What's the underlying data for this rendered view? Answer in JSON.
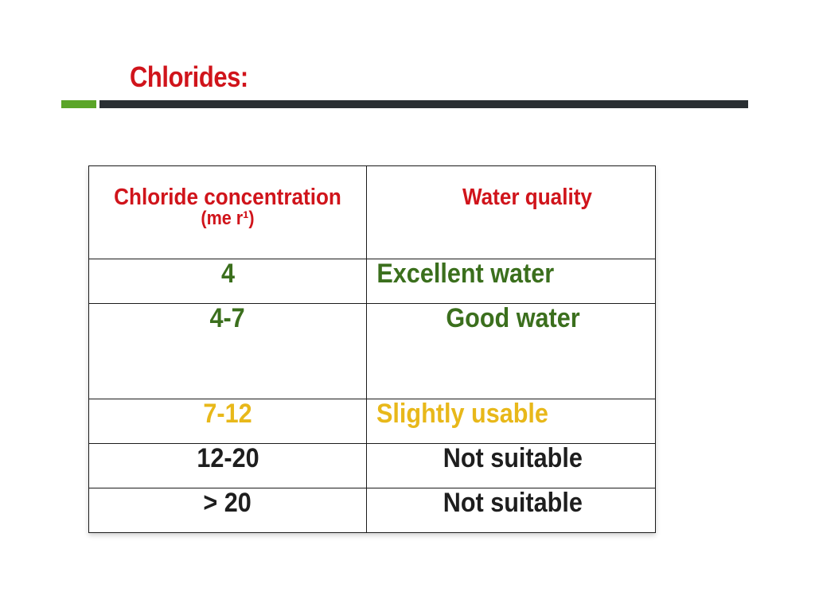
{
  "slide": {
    "title": "Chlorides:",
    "colors": {
      "title": "#d0141b",
      "accent_green": "#5aa528",
      "rule_dark": "#2a2f33",
      "good": "#3b6f1d",
      "warn": "#e8b81a",
      "bad": "#1e1e1e"
    }
  },
  "table": {
    "headers": {
      "concentration": "Chloride concentration",
      "concentration_unit": "(me r¹)",
      "quality": "Water quality"
    },
    "rows": [
      {
        "concentration": "4",
        "quality": "Excellent water",
        "tone": "green"
      },
      {
        "concentration": "4-7",
        "quality": "Good water",
        "tone": "green"
      },
      {
        "concentration": "7-12",
        "quality": "Slightly usable",
        "tone": "yellow"
      },
      {
        "concentration": "12-20",
        "quality": "Not suitable",
        "tone": "black"
      },
      {
        "concentration": "> 20",
        "quality": "Not suitable",
        "tone": "black"
      }
    ]
  }
}
